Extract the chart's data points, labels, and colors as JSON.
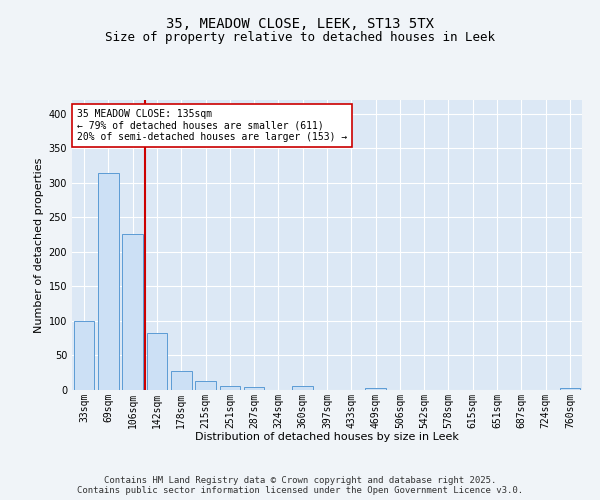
{
  "title1": "35, MEADOW CLOSE, LEEK, ST13 5TX",
  "title2": "Size of property relative to detached houses in Leek",
  "xlabel": "Distribution of detached houses by size in Leek",
  "ylabel": "Number of detached properties",
  "categories": [
    "33sqm",
    "69sqm",
    "106sqm",
    "142sqm",
    "178sqm",
    "215sqm",
    "251sqm",
    "287sqm",
    "324sqm",
    "360sqm",
    "397sqm",
    "433sqm",
    "469sqm",
    "506sqm",
    "542sqm",
    "578sqm",
    "615sqm",
    "651sqm",
    "687sqm",
    "724sqm",
    "760sqm"
  ],
  "values": [
    100,
    315,
    226,
    83,
    28,
    13,
    6,
    4,
    0,
    6,
    0,
    0,
    3,
    0,
    0,
    0,
    0,
    0,
    0,
    0,
    3
  ],
  "bar_color": "#cce0f5",
  "bar_edge_color": "#5b9bd5",
  "marker_line_color": "#cc0000",
  "annotation_text": "35 MEADOW CLOSE: 135sqm\n← 79% of detached houses are smaller (611)\n20% of semi-detached houses are larger (153) →",
  "annotation_box_color": "#ffffff",
  "annotation_border_color": "#cc0000",
  "ylim": [
    0,
    420
  ],
  "yticks": [
    0,
    50,
    100,
    150,
    200,
    250,
    300,
    350,
    400
  ],
  "fig_bg_color": "#f0f4f8",
  "plot_bg_color": "#dce8f5",
  "grid_color": "#ffffff",
  "title1_fontsize": 10,
  "title2_fontsize": 9,
  "axis_label_fontsize": 8,
  "tick_fontsize": 7,
  "footer_fontsize": 6.5,
  "footer": "Contains HM Land Registry data © Crown copyright and database right 2025.\nContains public sector information licensed under the Open Government Licence v3.0."
}
